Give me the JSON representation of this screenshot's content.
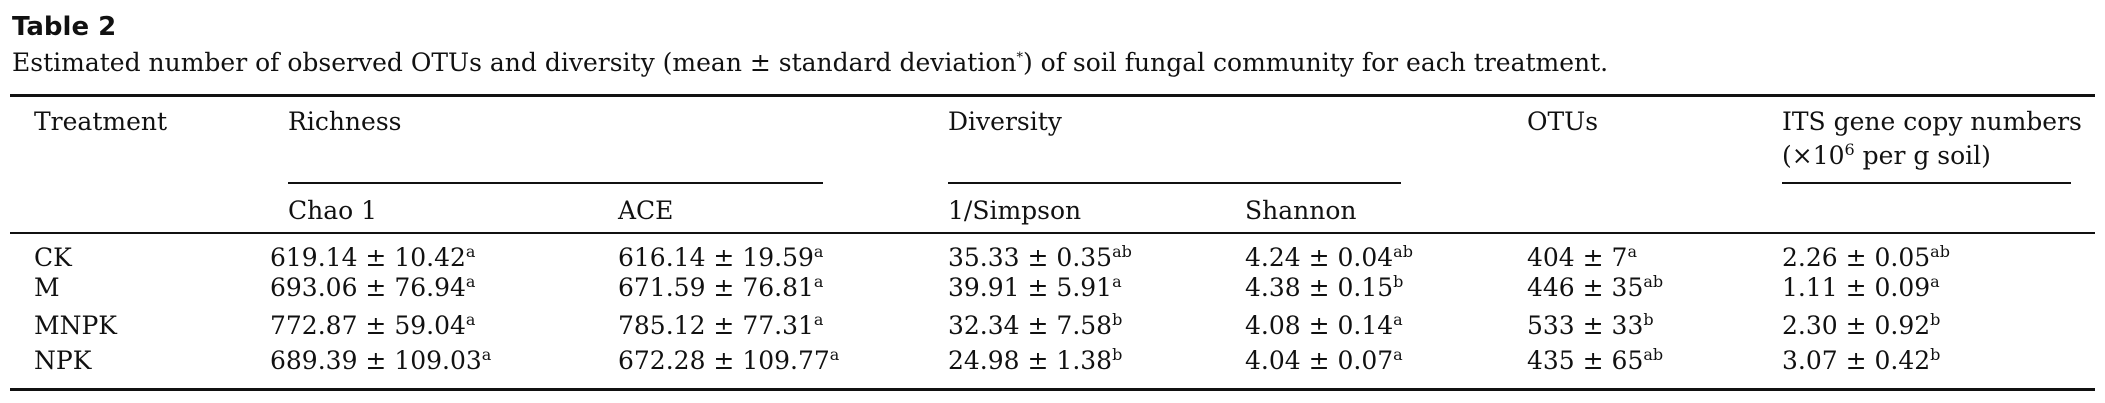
{
  "table_label": "Table 2",
  "caption": {
    "before": "Estimated number of observed OTUs and diversity (mean ± standard deviation",
    "mark": "*",
    "after": ") of soil fungal community for each treatment."
  },
  "headers": {
    "treatment": "Treatment",
    "richness": "Richness",
    "chao1": "Chao 1",
    "ace": "ACE",
    "diversity": "Diversity",
    "simpson": "1/Simpson",
    "shannon": "Shannon",
    "otus": "OTUs",
    "its_line1": "ITS gene copy numbers",
    "its_line2_pre": "(×10",
    "its_line2_exp": "6",
    "its_line2_post": " per g soil)"
  },
  "rows": [
    {
      "treatment": "CK",
      "chao1": "619.14 ± 10.42",
      "chao1_sup": "a",
      "ace": "616.14 ± 19.59",
      "ace_sup": "a",
      "simpson": "35.33 ± 0.35",
      "simpson_sup": "ab",
      "shannon": "4.24 ± 0.04",
      "shannon_sup": "ab",
      "otus": "404 ± 7",
      "otus_sup": "a",
      "its": "2.26 ± 0.05",
      "its_sup": "ab"
    },
    {
      "treatment": "M",
      "chao1": "693.06 ± 76.94",
      "chao1_sup": "a",
      "ace": "671.59 ± 76.81",
      "ace_sup": "a",
      "simpson": "39.91 ± 5.91",
      "simpson_sup": "a",
      "shannon": "4.38 ± 0.15",
      "shannon_sup": "b",
      "otus": "446 ± 35",
      "otus_sup": "ab",
      "its": "1.11 ± 0.09",
      "its_sup": "a"
    },
    {
      "treatment": "MNPK",
      "chao1": "772.87 ± 59.04",
      "chao1_sup": "a",
      "ace": "785.12 ± 77.31",
      "ace_sup": "a",
      "simpson": "32.34 ± 7.58",
      "simpson_sup": "b",
      "shannon": "4.08 ± 0.14",
      "shannon_sup": "a",
      "otus": "533 ± 33",
      "otus_sup": "b",
      "its": "2.30 ± 0.92",
      "its_sup": "b"
    },
    {
      "treatment": "NPK",
      "chao1": "689.39 ± 109.03",
      "chao1_sup": "a",
      "ace": "672.28 ± 109.77",
      "ace_sup": "a",
      "simpson": "24.98 ± 1.38",
      "simpson_sup": "b",
      "shannon": "4.04 ± 0.07",
      "shannon_sup": "a",
      "otus": "435 ± 65",
      "otus_sup": "ab",
      "its": "3.07 ± 0.42",
      "its_sup": "b"
    }
  ]
}
